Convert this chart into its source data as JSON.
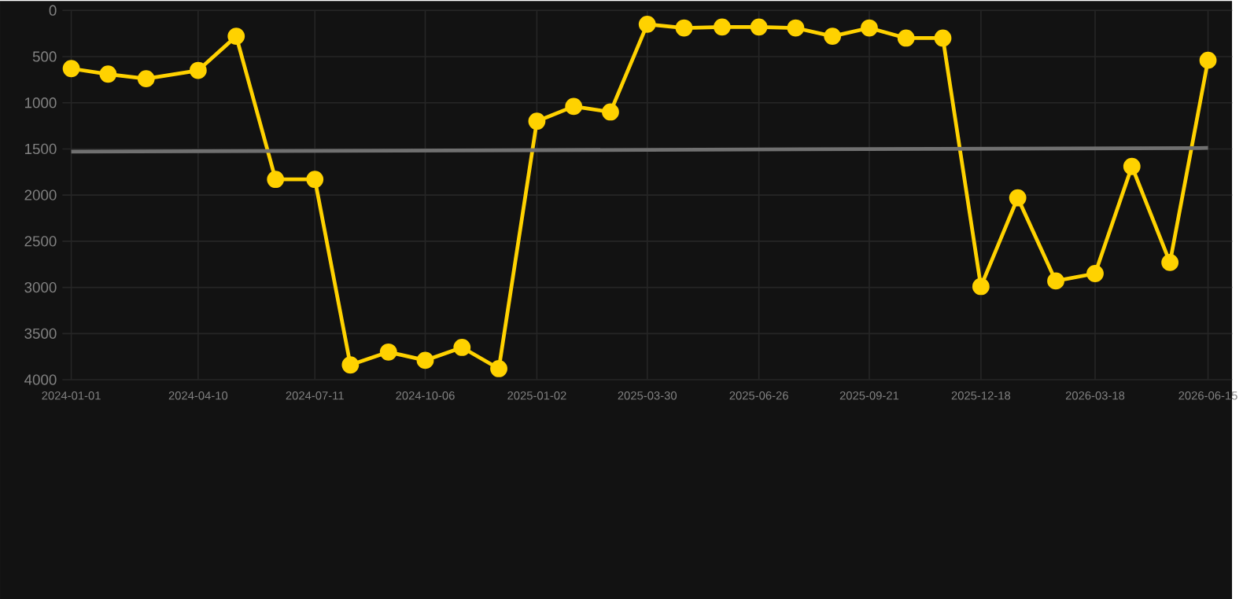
{
  "chart_data": {
    "type": "line",
    "x": [
      "2024-01-01",
      "2024-01-30",
      "2024-02-29",
      "2024-04-10",
      "2024-05-10",
      "2024-06-10",
      "2024-07-11",
      "2024-08-08",
      "2024-09-07",
      "2024-10-06",
      "2024-11-04",
      "2024-12-03",
      "2025-01-02",
      "2025-01-31",
      "2025-03-01",
      "2025-03-30",
      "2025-04-28",
      "2025-05-28",
      "2025-06-26",
      "2025-07-25",
      "2025-08-23",
      "2025-09-21",
      "2025-10-20",
      "2025-11-18",
      "2025-12-18",
      "2026-01-16",
      "2026-02-15",
      "2026-03-18",
      "2026-04-16",
      "2026-05-16",
      "2026-06-15"
    ],
    "series": [
      {
        "color": "#ffd200",
        "marker": "circle",
        "values": [
          630,
          690,
          740,
          650,
          280,
          1830,
          1830,
          3840,
          3700,
          3790,
          3650,
          3880,
          1200,
          1040,
          1100,
          150,
          190,
          180,
          180,
          190,
          280,
          190,
          300,
          300,
          2990,
          2030,
          2930,
          2850,
          1690,
          2730,
          540
        ]
      },
      {
        "type": "line",
        "color": "#707070",
        "marker": "none",
        "x": [
          "2024-01-01",
          "2026-06-15"
        ],
        "values": [
          1530,
          1490
        ]
      }
    ],
    "xlim": [
      "2023-12-25",
      "2026-07-04"
    ],
    "xticks": [
      "2024-01-01",
      "2024-04-10",
      "2024-07-11",
      "2024-10-06",
      "2025-01-02",
      "2025-03-30",
      "2025-06-26",
      "2025-09-21",
      "2025-12-18",
      "2026-03-18",
      "2026-06-15"
    ],
    "ylim": [
      4000,
      0
    ],
    "yticks": [
      0,
      500,
      1000,
      1500,
      2000,
      2500,
      3000,
      3500,
      4000
    ],
    "grid": true,
    "line_style": "solid"
  }
}
